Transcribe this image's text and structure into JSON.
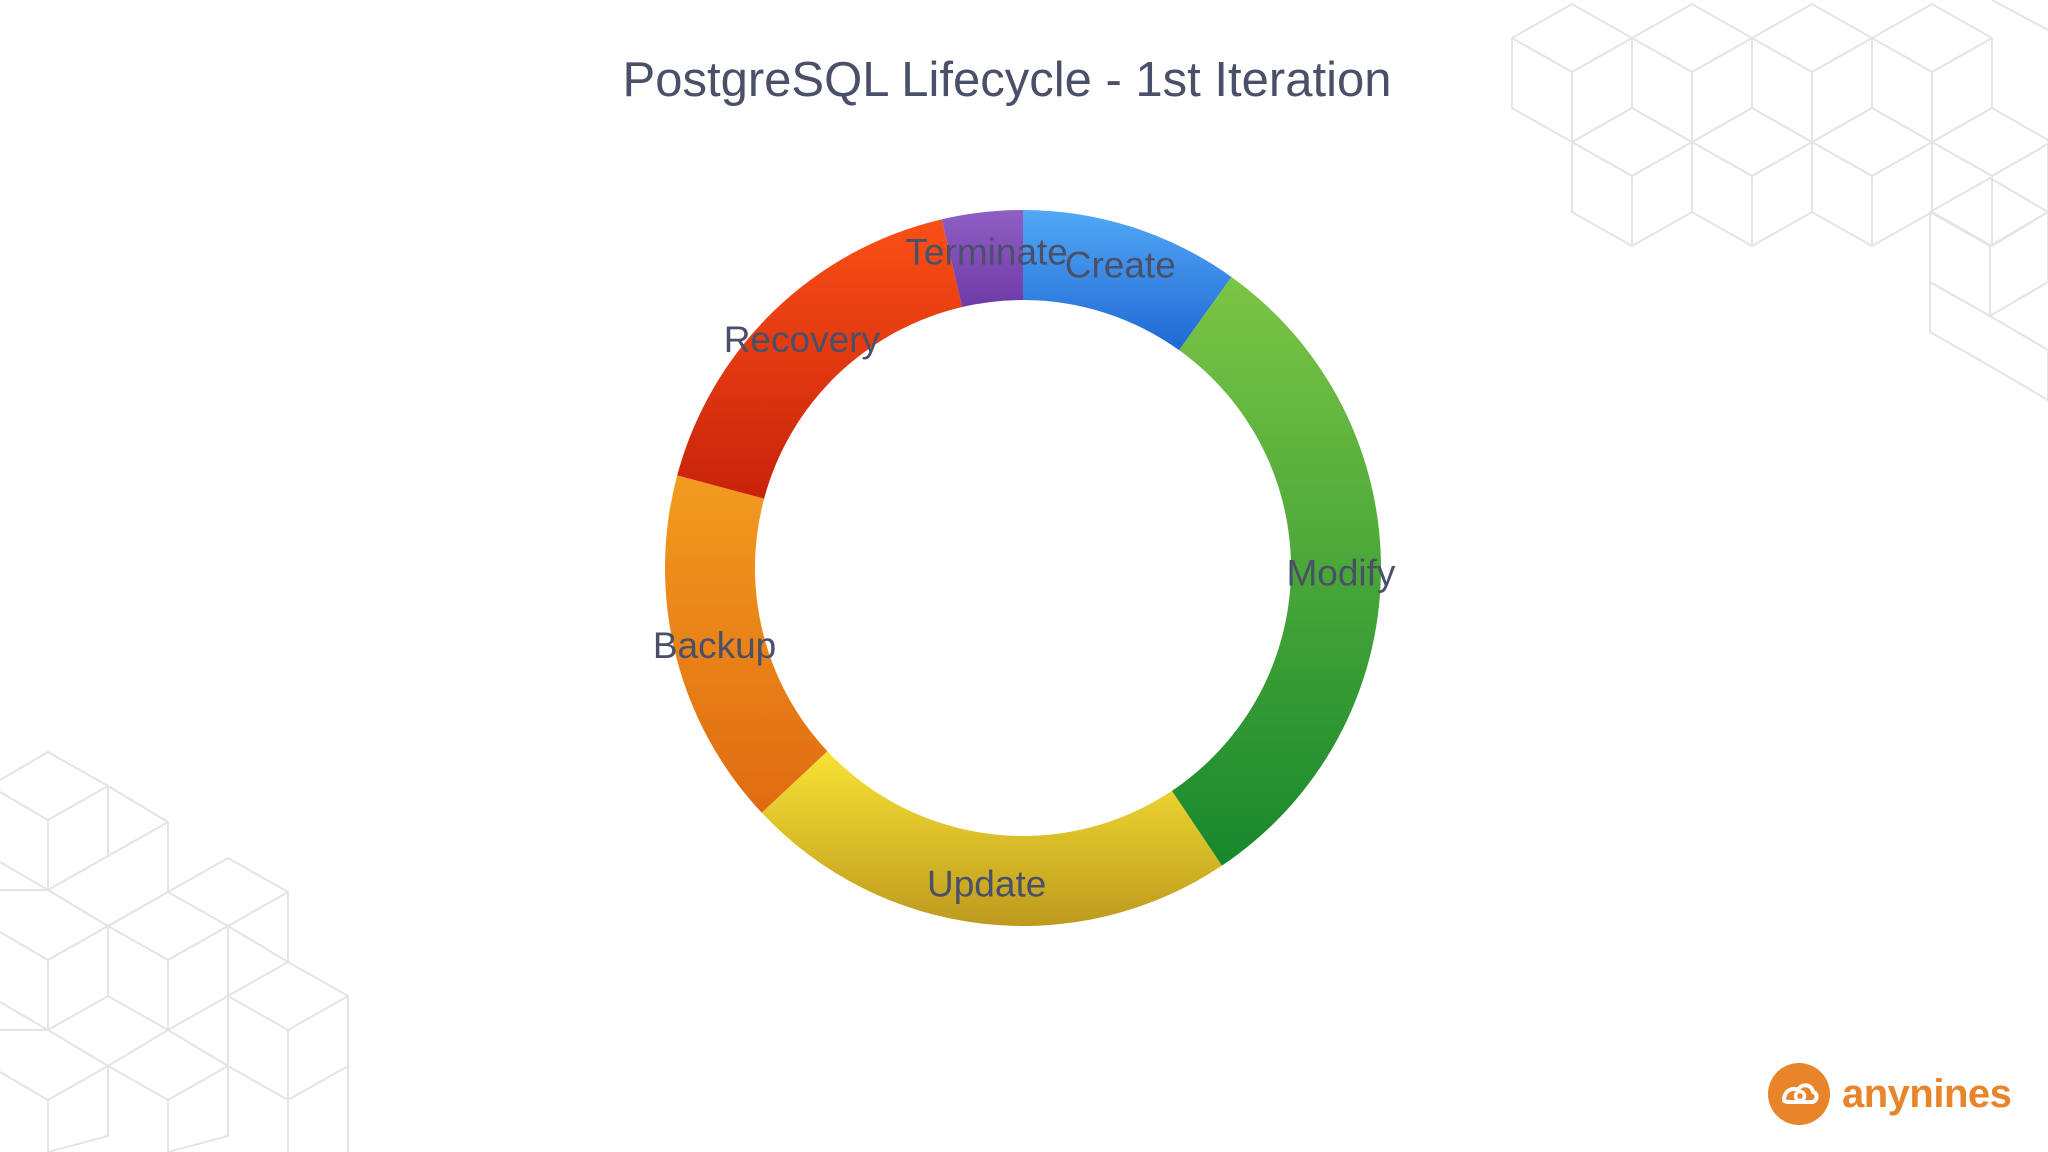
{
  "brand": {
    "name": "anynines",
    "accent": "#e8842a"
  },
  "chart_data": {
    "type": "pie",
    "variant": "donut",
    "title": "PostgreSQL Lifecycle - 1st Iteration",
    "legend": "none",
    "slices": [
      {
        "label": "Create",
        "value": 9.5,
        "color_light": "#52a8f5",
        "color_dark": "#1f68d4"
      },
      {
        "label": "Modify",
        "value": 29.5,
        "color_light": "#7cc545",
        "color_dark": "#17882d"
      },
      {
        "label": "Update",
        "value": 21.5,
        "color_light": "#f8e334",
        "color_dark": "#bd9a1e"
      },
      {
        "label": "Backup",
        "value": 15.5,
        "color_light": "#f29b1f",
        "color_dark": "#e06b11"
      },
      {
        "label": "Recovery",
        "value": 16.5,
        "color_light": "#fa4f16",
        "color_dark": "#c8230b"
      },
      {
        "label": "Terminate",
        "value": 3.5,
        "color_light": "#8f5fc4",
        "color_dark": "#6f3aa6"
      }
    ]
  }
}
